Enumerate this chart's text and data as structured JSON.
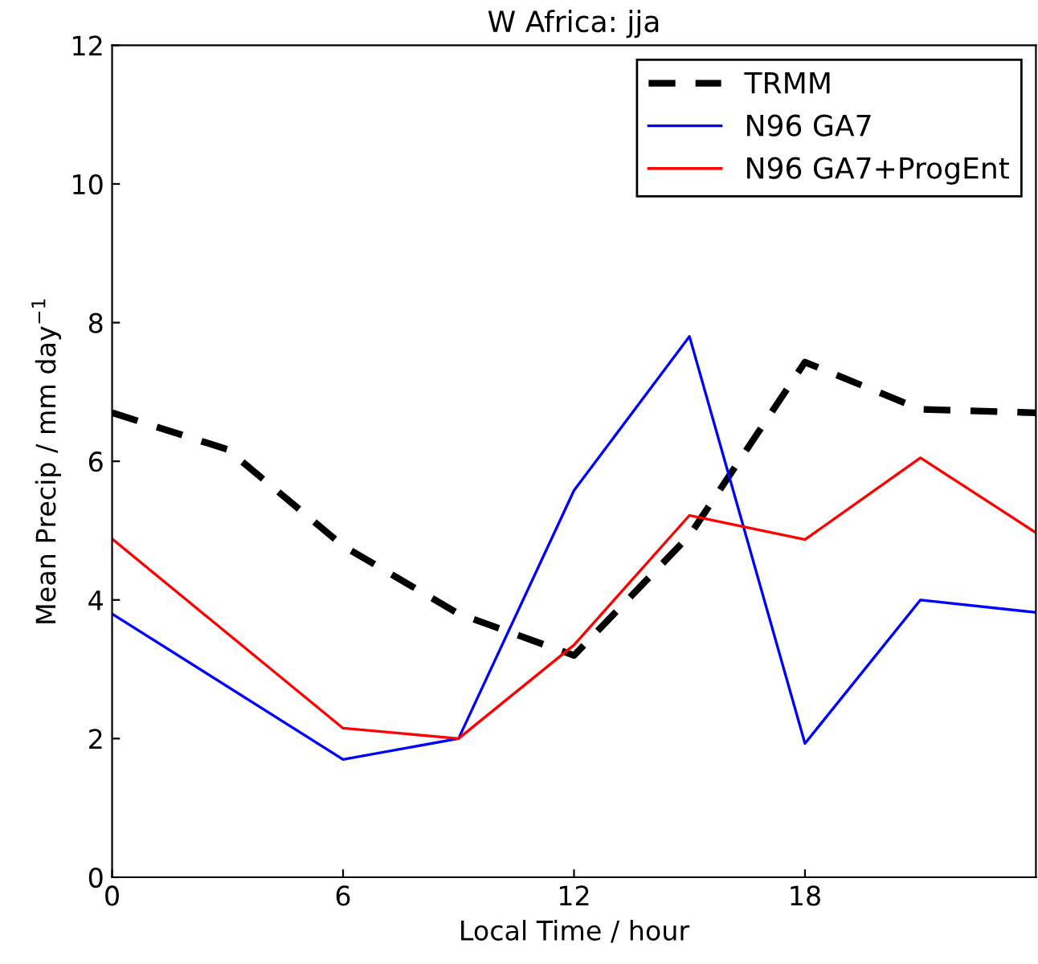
{
  "chart_data": {
    "type": "line",
    "title": "W Africa: jja",
    "xlabel": "Local Time / hour",
    "ylabel": "Mean Precip / mm day$^{−1}$",
    "xlim": [
      0,
      24
    ],
    "xticks": [
      0,
      6,
      12,
      18
    ],
    "ylim": [
      0,
      12
    ],
    "yticks": [
      0,
      2,
      4,
      6,
      8,
      10,
      12
    ],
    "grid": false,
    "legend": "top right",
    "series": [
      {
        "name": "TRMM",
        "color": "#000000",
        "line_style": "dashed",
        "x": [
          0,
          3,
          6,
          9,
          12,
          15,
          18,
          21,
          24
        ],
        "values": [
          6.7,
          6.17,
          4.78,
          3.8,
          3.2,
          4.93,
          7.43,
          6.75,
          6.7
        ]
      },
      {
        "name": "N96 GA7",
        "color": "#0000ff",
        "line_style": "solid",
        "x": [
          0,
          6,
          9,
          12,
          15,
          18,
          21,
          24
        ],
        "values": [
          3.8,
          1.7,
          2.0,
          5.58,
          7.8,
          1.93,
          4.0,
          3.82
        ]
      },
      {
        "name": "N96 GA7+ProgEnt",
        "color": "#ff0000",
        "line_style": "solid",
        "x": [
          0,
          6,
          9,
          12,
          15,
          18,
          21,
          24
        ],
        "values": [
          4.88,
          2.15,
          2.0,
          3.35,
          5.22,
          4.87,
          6.05,
          4.97
        ]
      }
    ]
  }
}
